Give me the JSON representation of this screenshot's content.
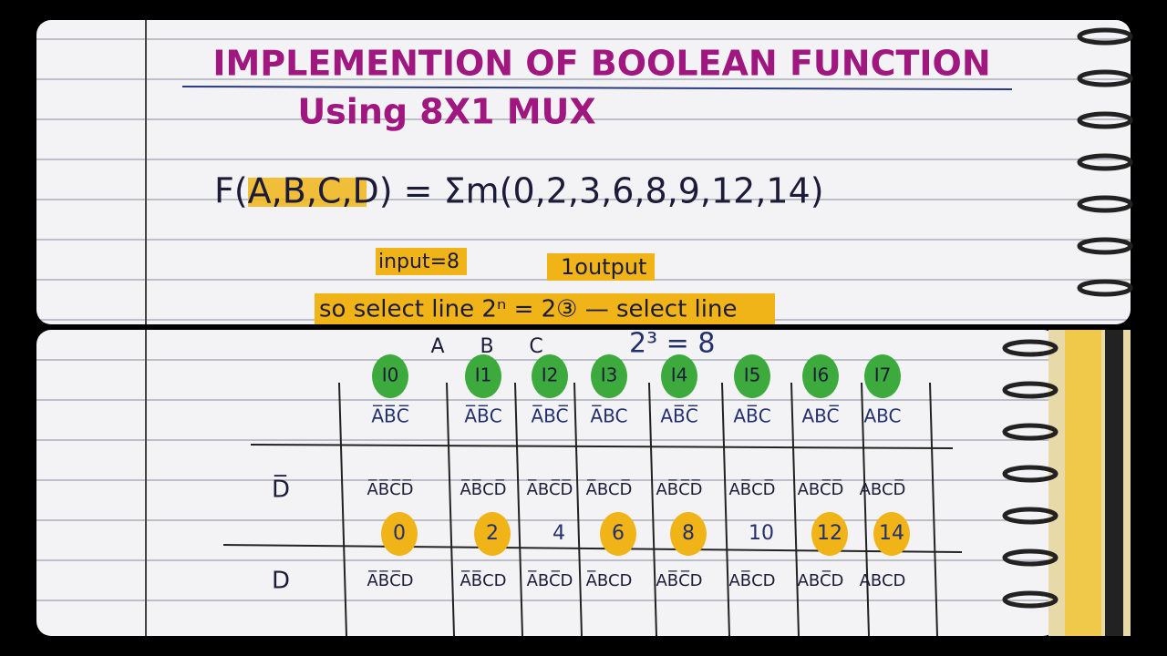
{
  "header": {
    "title": "IMPLEMENTION OF BOOLEAN FUNCTION",
    "subtitle": "Using 8X1 MUX"
  },
  "function": "F(A,B,C,D) = Σm(0,2,3,6,8,9,12,14)",
  "notes": {
    "input": "input=8",
    "output": "1output",
    "select": "so select line 2ⁿ = 2③ — select line"
  },
  "table": {
    "select_vars": [
      "A",
      "B",
      "C"
    ],
    "power": "2³ = 8",
    "inputs": [
      "I0",
      "I1",
      "I2",
      "I3",
      "I4",
      "I5",
      "I6",
      "I7"
    ],
    "selects": [
      "A̅B̅C̅",
      "A̅B̅C",
      "A̅BC̅",
      "A̅BC",
      "AB̅C̅",
      "AB̅C",
      "ABC̅",
      "ABC"
    ],
    "rows": [
      {
        "label": "D̅",
        "minterms": [
          "A̅B̅C̅D̅",
          "A̅B̅CD̅",
          "A̅BC̅D̅",
          "A̅BCD̅",
          "AB̅C̅D̅",
          "AB̅CD̅",
          "ABC̅D̅",
          "ABCD̅"
        ],
        "numbers": [
          0,
          2,
          4,
          6,
          8,
          10,
          12,
          14
        ],
        "highlighted": [
          true,
          true,
          false,
          true,
          true,
          false,
          true,
          true
        ]
      },
      {
        "label": "D",
        "minterms": [
          "A̅B̅C̅D",
          "A̅B̅CD",
          "A̅BC̅D",
          "A̅BCD",
          "AB̅C̅D",
          "AB̅CD",
          "ABC̅D",
          "ABCD"
        ]
      }
    ]
  }
}
